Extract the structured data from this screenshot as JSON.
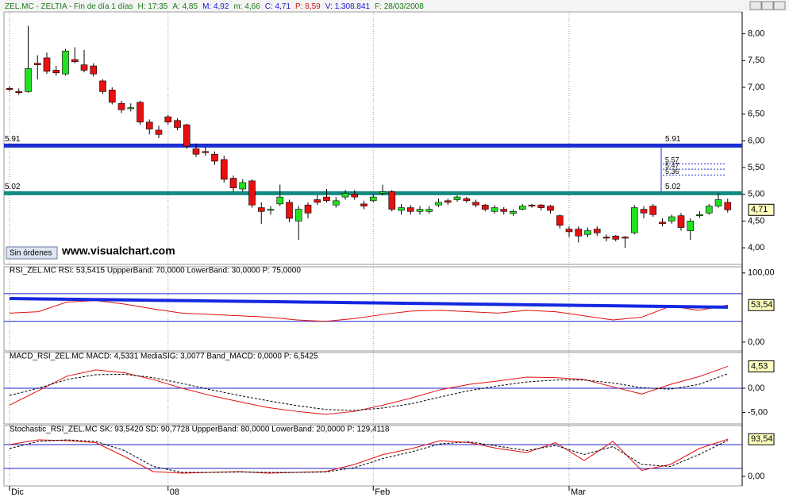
{
  "chart_data": [
    {
      "type": "candlestick",
      "header": [
        {
          "text": "ZEL.MC - ZELTIA - Fin de día 1 días",
          "color": "#1a7a1a"
        },
        {
          "text": "H: 17:35",
          "color": "#1a7a1a"
        },
        {
          "text": "A: 4,85",
          "color": "#1a7a1a"
        },
        {
          "text": "M: 4,92",
          "color": "#1a1acc"
        },
        {
          "text": "m: 4,66",
          "color": "#1a7a1a"
        },
        {
          "text": "C: 4,71",
          "color": "#1a1acc"
        },
        {
          "text": "P: 8,59",
          "color": "#cc1a1a"
        },
        {
          "text": "V: 1.308.841",
          "color": "#1a1acc"
        },
        {
          "text": "F: 28/03/2008",
          "color": "#1a7a1a"
        }
      ],
      "categories": [
        "Dic",
        null,
        null,
        null,
        null,
        null,
        null,
        null,
        null,
        null,
        null,
        null,
        null,
        null,
        null,
        null,
        null,
        "08",
        null,
        null,
        null,
        null,
        null,
        null,
        null,
        null,
        null,
        null,
        null,
        null,
        null,
        null,
        null,
        null,
        null,
        null,
        null,
        null,
        null,
        "Feb",
        null,
        null,
        null,
        null,
        null,
        null,
        null,
        null,
        null,
        null,
        null,
        null,
        null,
        null,
        null,
        null,
        null,
        null,
        null,
        null,
        "Mar",
        null,
        null,
        null,
        null,
        null,
        null,
        null,
        null,
        null,
        null,
        null,
        null,
        null,
        null,
        null,
        null,
        null
      ],
      "open": [
        6.98,
        6.92,
        6.92,
        7.45,
        7.55,
        7.32,
        7.25,
        7.52,
        7.42,
        7.4,
        7.12,
        6.95,
        6.7,
        6.6,
        6.72,
        6.35,
        6.2,
        6.45,
        6.38,
        6.3,
        5.85,
        5.8,
        5.75,
        5.65,
        5.3,
        5.1,
        5.25,
        4.75,
        4.7,
        4.82,
        4.85,
        4.5,
        4.8,
        4.9,
        4.95,
        4.8,
        4.95,
        5.0,
        4.82,
        4.88,
        5.02,
        5.05,
        4.7,
        4.75,
        4.68,
        4.68,
        4.8,
        4.88,
        4.9,
        4.92,
        4.85,
        4.8,
        4.68,
        4.72,
        4.64,
        4.72,
        4.8,
        4.8,
        4.78,
        4.6,
        4.35,
        4.35,
        4.25,
        4.35,
        4.2,
        4.22,
        4.2,
        4.28,
        4.72,
        4.78,
        4.48,
        4.5,
        4.6,
        4.32,
        4.6,
        4.65,
        4.78,
        4.85
      ],
      "high": [
        7.02,
        6.98,
        8.15,
        7.6,
        7.65,
        7.4,
        7.72,
        7.75,
        7.7,
        7.45,
        7.15,
        7.0,
        6.75,
        6.7,
        6.75,
        6.4,
        6.28,
        6.48,
        6.42,
        6.32,
        5.95,
        5.88,
        5.8,
        5.72,
        5.35,
        5.28,
        5.28,
        4.85,
        4.78,
        5.18,
        4.9,
        4.78,
        4.85,
        4.98,
        5.1,
        4.95,
        5.08,
        5.08,
        4.88,
        5.0,
        5.18,
        5.08,
        4.82,
        4.8,
        4.78,
        4.78,
        4.92,
        4.92,
        4.98,
        4.95,
        4.9,
        4.82,
        4.8,
        4.76,
        4.72,
        4.82,
        4.82,
        4.82,
        4.8,
        4.62,
        4.4,
        4.4,
        4.38,
        4.4,
        4.25,
        4.24,
        4.22,
        4.8,
        4.78,
        4.82,
        4.55,
        4.62,
        4.65,
        4.55,
        4.68,
        4.82,
        5.02,
        4.92
      ],
      "low": [
        6.92,
        6.86,
        6.9,
        7.15,
        7.25,
        7.22,
        7.22,
        7.45,
        7.28,
        7.2,
        6.88,
        6.68,
        6.52,
        6.55,
        6.3,
        6.12,
        6.05,
        6.3,
        6.2,
        5.85,
        5.7,
        5.72,
        5.55,
        5.22,
        5.05,
        5.05,
        4.75,
        4.45,
        4.62,
        4.78,
        4.48,
        4.15,
        4.55,
        4.8,
        4.85,
        4.75,
        4.9,
        4.9,
        4.72,
        4.85,
        4.98,
        4.68,
        4.62,
        4.62,
        4.62,
        4.64,
        4.76,
        4.8,
        4.86,
        4.84,
        4.76,
        4.68,
        4.64,
        4.62,
        4.6,
        4.7,
        4.75,
        4.7,
        4.64,
        4.36,
        4.2,
        4.1,
        4.2,
        4.22,
        4.12,
        4.12,
        4.0,
        4.25,
        4.55,
        4.58,
        4.4,
        4.45,
        4.32,
        4.15,
        4.56,
        4.62,
        4.75,
        4.66
      ],
      "close": [
        6.96,
        6.9,
        7.35,
        7.42,
        7.3,
        7.27,
        7.68,
        7.48,
        7.32,
        7.25,
        6.92,
        6.72,
        6.58,
        6.62,
        6.35,
        6.22,
        6.12,
        6.35,
        6.25,
        5.9,
        5.75,
        5.78,
        5.62,
        5.28,
        5.12,
        5.22,
        4.8,
        4.68,
        4.72,
        4.95,
        4.55,
        4.72,
        4.65,
        4.85,
        4.88,
        4.88,
        5.02,
        4.95,
        4.78,
        4.95,
        5.05,
        4.72,
        4.75,
        4.68,
        4.72,
        4.72,
        4.85,
        4.85,
        4.95,
        4.88,
        4.8,
        4.72,
        4.75,
        4.68,
        4.68,
        4.78,
        4.78,
        4.75,
        4.7,
        4.42,
        4.3,
        4.22,
        4.32,
        4.28,
        4.18,
        4.16,
        4.18,
        4.75,
        4.65,
        4.62,
        4.45,
        4.58,
        4.38,
        4.5,
        4.62,
        4.78,
        4.9,
        4.71
      ],
      "up_color": "#22e022",
      "down_color": "#e81010",
      "ylim": [
        3.69,
        8.41
      ],
      "yticks": [
        {
          "value": 4,
          "label": "4,00"
        },
        {
          "value": 4.5,
          "label": "4,50"
        },
        {
          "value": 5,
          "label": "5,00"
        },
        {
          "value": 5.5,
          "label": "5,50"
        },
        {
          "value": 6,
          "label": "6,00"
        },
        {
          "value": 6.5,
          "label": "6,50"
        },
        {
          "value": 7,
          "label": "7,00"
        },
        {
          "value": 7.5,
          "label": "7,50"
        },
        {
          "value": 8,
          "label": "8,00"
        }
      ],
      "levels": [
        {
          "value": 5.91,
          "color": "#1c2fd0"
        },
        {
          "value": 5.02,
          "color": "#128a80"
        }
      ],
      "fib_levels": [
        5.57,
        5.47,
        5.36
      ],
      "last_value": {
        "value": 4.71,
        "label": "4,71"
      },
      "watermark": "www.visualchart.com",
      "button": "Sin órdenes"
    },
    {
      "type": "line",
      "title": "RSI_ZEL.MC  RSI: 53,5415  UppperBand: 70,0000  LowerBand: 30,0000  P: 75,0000",
      "title_color": "#cc0000",
      "series": [
        {
          "color": "#e01010",
          "width": 1,
          "values": [
            42,
            44,
            58,
            60,
            55,
            48,
            42,
            40,
            38,
            36,
            32,
            30,
            34,
            40,
            45,
            46,
            44,
            42,
            46,
            44,
            38,
            32,
            36,
            52,
            46,
            53.54
          ]
        },
        {
          "color": "#1428e0",
          "width": 4,
          "values": [
            63,
            62.5,
            62,
            61.5,
            61,
            60.5,
            60,
            59.5,
            59,
            58.5,
            58,
            57.5,
            57,
            56.5,
            56,
            55.5,
            55,
            54.5,
            54,
            53.5,
            53,
            52.5,
            52,
            51.5,
            51,
            50.5
          ]
        }
      ],
      "bands": [
        70,
        30
      ],
      "ylim": [
        -12.7,
        108.9
      ],
      "yticks": [
        {
          "value": 0,
          "label": "0,00"
        },
        {
          "value": 100,
          "label": "100,00"
        }
      ],
      "last_value": {
        "value": 53.54,
        "label": "53,54"
      }
    },
    {
      "type": "line",
      "title": "MACD_RSI_ZEL.MC  MACD: 4,5331  MediaSIG: 3,0077  Band_MACD: 0,0000  P: 6,5425",
      "title_color": "#cc0000",
      "series": [
        {
          "color": "#e01010",
          "width": 1,
          "values": [
            -3.5,
            -0.5,
            2.5,
            3.8,
            3.2,
            1.8,
            0,
            -1.5,
            -2.8,
            -4,
            -4.8,
            -5.4,
            -4.8,
            -3.5,
            -2,
            -0.3,
            0.8,
            1.5,
            2.3,
            2.2,
            1.8,
            0.3,
            -1.2,
            0.8,
            2.4,
            4.53
          ]
        },
        {
          "color": "#000000",
          "width": 1,
          "dash": true,
          "values": [
            -1.5,
            0,
            1.8,
            2.8,
            2.9,
            2.2,
            1,
            -0.3,
            -1.5,
            -2.6,
            -3.6,
            -4.4,
            -4.6,
            -4.1,
            -3.2,
            -1.8,
            -0.5,
            0.5,
            1.3,
            1.7,
            1.7,
            1.1,
            0.1,
            -0.2,
            0.8,
            3.0
          ]
        }
      ],
      "bands": [
        0
      ],
      "ylim": [
        -7.4,
        7.4
      ],
      "yticks": [
        {
          "value": -5,
          "label": "-5,00"
        },
        {
          "value": 0,
          "label": "0,00"
        }
      ],
      "last_value": {
        "value": 4.53,
        "label": "4,53"
      }
    },
    {
      "type": "line",
      "title": "Stochastic_RSI_ZEL.MC  SK: 93,5420  SD: 90,7728  UppperBand: 80,0000  LowerBand: 20,0000  P: 129,4118",
      "title_color": "#cc0000",
      "series": [
        {
          "color": "#e01010",
          "width": 1,
          "values": [
            80,
            92,
            90,
            85,
            50,
            12,
            8,
            10,
            12,
            8,
            10,
            12,
            30,
            55,
            70,
            90,
            85,
            70,
            60,
            85,
            40,
            88,
            15,
            30,
            70,
            93.54
          ]
        },
        {
          "color": "#000000",
          "width": 1,
          "dash": true,
          "values": [
            70,
            88,
            92,
            88,
            65,
            25,
            10,
            10,
            11,
            10,
            10,
            11,
            22,
            45,
            62,
            82,
            87,
            76,
            65,
            78,
            55,
            75,
            30,
            25,
            55,
            90.77
          ]
        }
      ],
      "bands": [
        80,
        20
      ],
      "ylim": [
        -24,
        128
      ],
      "yticks": [
        {
          "value": 0,
          "label": "0,00"
        }
      ],
      "last_value": {
        "value": 93.54,
        "label": "93,54"
      }
    }
  ]
}
